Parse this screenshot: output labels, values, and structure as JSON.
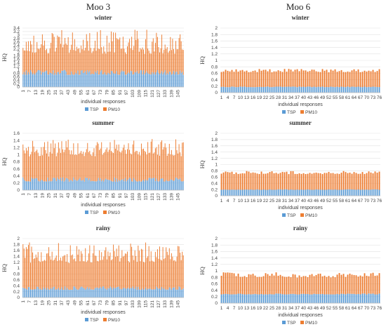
{
  "columns": [
    "Moo 3",
    "Moo 6"
  ],
  "legend": [
    "TSP",
    "PM10"
  ],
  "colors": {
    "TSP": "#5b9bd5",
    "PM10": "#ed7d31"
  },
  "chart_data": [
    {
      "type": "bar",
      "stacked": true,
      "column": "Moo 3",
      "title": "winter",
      "ylabel": "HQ",
      "xlabel": "individual responses",
      "ylim": [
        0,
        3.4
      ],
      "yticks": [
        0,
        0.2,
        0.4,
        0.6,
        0.8,
        1,
        1.2,
        1.4,
        1.6,
        1.8,
        2,
        2.2,
        2.4,
        2.6,
        2.8,
        3,
        3.2,
        3.4
      ],
      "x_start": 1,
      "x_end": 150,
      "x_tick_step": 6,
      "series": [
        {
          "name": "TSP",
          "approx_mean": 0.78,
          "approx_range": [
            0.7,
            0.98
          ]
        },
        {
          "name": "PM10",
          "approx_mean": 1.65,
          "approx_range": [
            1.2,
            2.45
          ]
        }
      ]
    },
    {
      "type": "bar",
      "stacked": true,
      "column": "Moo 6",
      "title": "winter",
      "ylabel": "HQ",
      "xlabel": "individual responses",
      "ylim": [
        0,
        2
      ],
      "yticks": [
        0,
        0.2,
        0.4,
        0.6,
        0.8,
        1,
        1.2,
        1.4,
        1.6,
        1.8,
        2
      ],
      "x_start": 1,
      "x_end": 76,
      "x_tick_step": 3,
      "series": [
        {
          "name": "TSP",
          "approx_mean": 0.18,
          "approx_range": [
            0.17,
            0.19
          ]
        },
        {
          "name": "PM10",
          "approx_mean": 0.5,
          "approx_range": [
            0.46,
            0.56
          ]
        }
      ]
    },
    {
      "type": "bar",
      "stacked": true,
      "column": "Moo 3",
      "title": "summer",
      "ylabel": "HQ",
      "xlabel": "individual responses",
      "ylim": [
        0,
        1.6
      ],
      "yticks": [
        0,
        0.2,
        0.4,
        0.6,
        0.8,
        1,
        1.2,
        1.4,
        1.6
      ],
      "x_start": 1,
      "x_end": 150,
      "x_tick_step": 6,
      "series": [
        {
          "name": "TSP",
          "approx_mean": 0.28,
          "approx_range": [
            0.24,
            0.36
          ]
        },
        {
          "name": "PM10",
          "approx_mean": 0.82,
          "approx_range": [
            0.7,
            1.12
          ]
        }
      ]
    },
    {
      "type": "bar",
      "stacked": true,
      "column": "Moo 6",
      "title": "summer",
      "ylabel": "HQ",
      "xlabel": "individual responses",
      "ylim": [
        0,
        2
      ],
      "yticks": [
        0,
        0.2,
        0.4,
        0.6,
        0.8,
        1,
        1.2,
        1.4,
        1.6,
        1.8,
        2
      ],
      "x_start": 1,
      "x_end": 76,
      "x_tick_step": 3,
      "series": [
        {
          "name": "TSP",
          "approx_mean": 0.2,
          "approx_range": [
            0.19,
            0.21
          ]
        },
        {
          "name": "PM10",
          "approx_mean": 0.54,
          "approx_range": [
            0.5,
            0.6
          ]
        }
      ]
    },
    {
      "type": "bar",
      "stacked": true,
      "column": "Moo 3",
      "title": "rainy",
      "ylabel": "HQ",
      "xlabel": "individual responses",
      "ylim": [
        0,
        2
      ],
      "yticks": [
        0,
        0.2,
        0.4,
        0.6,
        0.8,
        1,
        1.2,
        1.4,
        1.6,
        1.8,
        2
      ],
      "x_start": 1,
      "x_end": 150,
      "x_tick_step": 6,
      "series": [
        {
          "name": "TSP",
          "approx_mean": 0.3,
          "approx_range": [
            0.26,
            0.38
          ]
        },
        {
          "name": "PM10",
          "approx_mean": 1.15,
          "approx_range": [
            0.9,
            1.55
          ]
        }
      ]
    },
    {
      "type": "bar",
      "stacked": true,
      "column": "Moo 6",
      "title": "rainy",
      "ylabel": "HQ",
      "xlabel": "individual responses",
      "ylim": [
        0,
        2
      ],
      "yticks": [
        0,
        0.2,
        0.4,
        0.6,
        0.8,
        1,
        1.2,
        1.4,
        1.6,
        1.8,
        2
      ],
      "x_start": 1,
      "x_end": 76,
      "x_tick_step": 3,
      "series": [
        {
          "name": "TSP",
          "approx_mean": 0.28,
          "approx_range": [
            0.27,
            0.3
          ]
        },
        {
          "name": "PM10",
          "approx_mean": 0.6,
          "approx_range": [
            0.52,
            0.68
          ]
        }
      ]
    }
  ]
}
